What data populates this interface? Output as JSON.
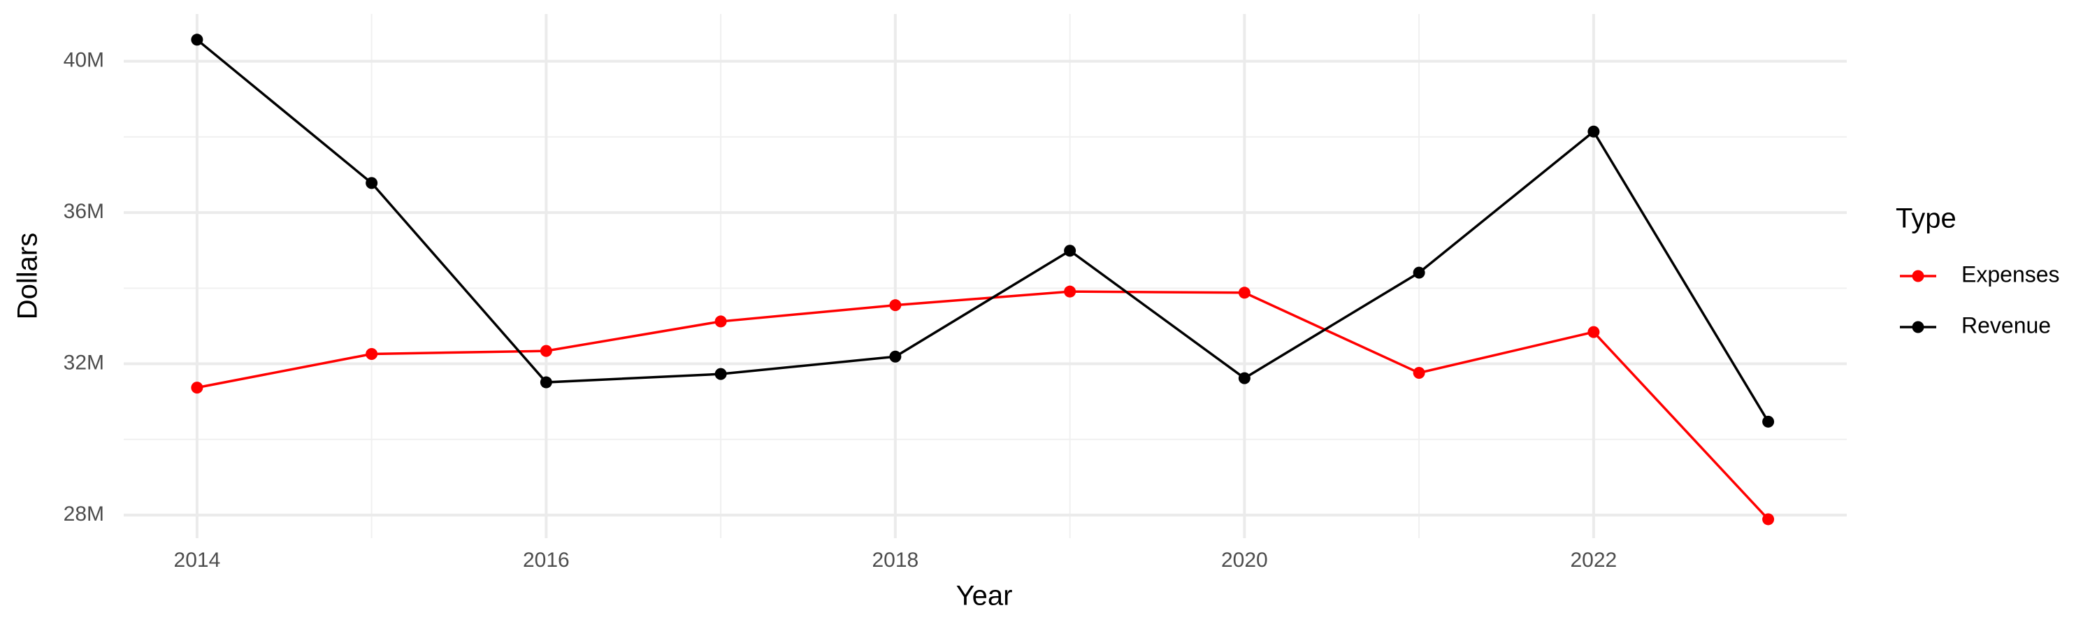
{
  "chart_data": {
    "type": "line",
    "x_label": "Year",
    "y_label": "Dollars",
    "legend_title": "Type",
    "legend_position": "right",
    "grid": true,
    "x": [
      2014,
      2015,
      2016,
      2017,
      2018,
      2019,
      2020,
      2021,
      2022,
      2023
    ],
    "series": [
      {
        "name": "Expenses",
        "color": "#ff0000",
        "values": [
          31370000,
          32260000,
          32340000,
          33120000,
          33550000,
          33910000,
          33880000,
          31760000,
          32840000,
          27890000
        ]
      },
      {
        "name": "Revenue",
        "color": "#000000",
        "values": [
          40570000,
          36780000,
          31510000,
          31730000,
          32190000,
          34990000,
          31620000,
          34410000,
          38140000,
          30470000
        ]
      }
    ],
    "xlim": [
      2013.58,
      2023.45
    ],
    "xticks": [
      2014,
      2016,
      2018,
      2020,
      2022
    ],
    "ylim": [
      27390000,
      41250000
    ],
    "yticks": [
      {
        "value": 28000000,
        "label": "28M"
      },
      {
        "value": 32000000,
        "label": "32M"
      },
      {
        "value": 36000000,
        "label": "36M"
      },
      {
        "value": 40000000,
        "label": "40M"
      }
    ]
  }
}
